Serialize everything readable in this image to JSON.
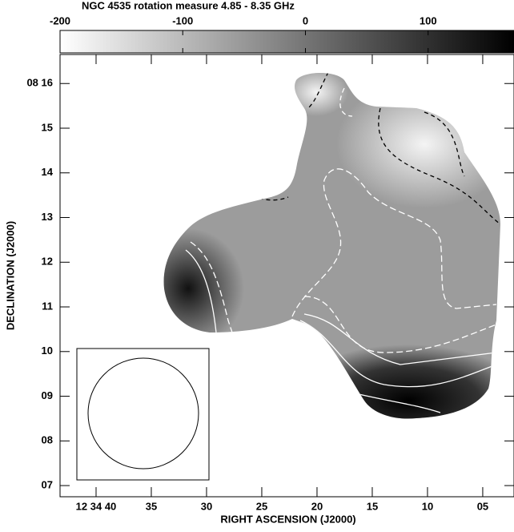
{
  "chart_data": {
    "type": "image",
    "title": "NGC 4535 rotation measure 4.85 - 8.35 GHz",
    "x_label": "RIGHT ASCENSION (J2000)",
    "y_label": "DECLINATION (J2000)",
    "xlim": [
      43.26,
      2.17
    ],
    "xticks": [
      {
        "value": 40,
        "label": "12 34 40"
      },
      35,
      30,
      25,
      20,
      15,
      10,
      {
        "value": 5,
        "label": "05"
      }
    ],
    "ylim": [
      6.75,
      16.65
    ],
    "yticks": [
      {
        "value": 16,
        "label": "08 16"
      },
      15,
      14,
      13,
      12,
      11,
      10,
      {
        "value": 9,
        "label": "09"
      },
      {
        "value": 8,
        "label": "08"
      },
      {
        "value": 7,
        "label": "07"
      }
    ],
    "colorbar": {
      "lim": [
        -200,
        170
      ],
      "ticks": [
        -200,
        -100,
        0,
        100
      ],
      "colors": [
        "#ffffff",
        "#000000"
      ]
    }
  }
}
